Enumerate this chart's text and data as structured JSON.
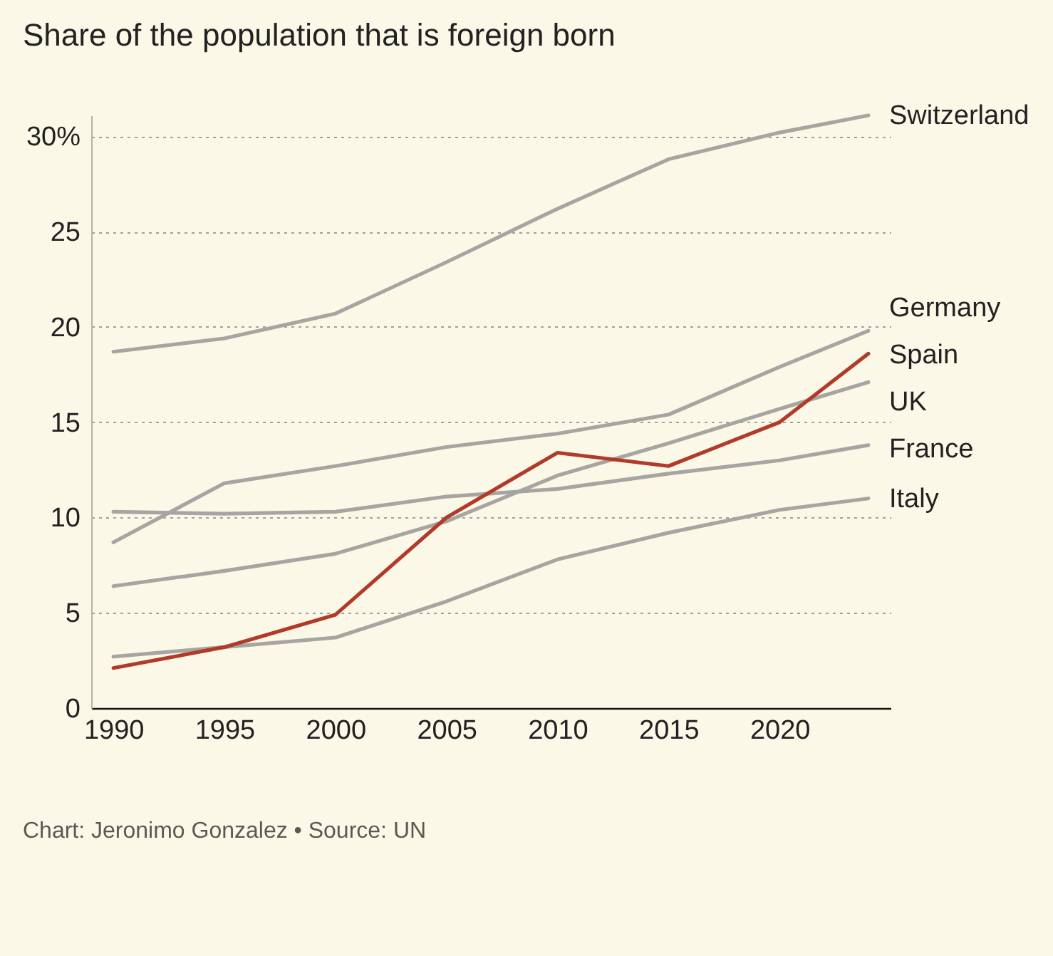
{
  "chart_data": {
    "type": "line",
    "title": "Share of the population that is foreign born",
    "x": [
      1990,
      1995,
      2000,
      2005,
      2010,
      2015,
      2020,
      2024
    ],
    "series": [
      {
        "name": "Switzerland",
        "color": "#a6a5a1",
        "values": [
          18.7,
          19.4,
          20.7,
          23.4,
          26.2,
          28.8,
          30.2,
          31.1
        ]
      },
      {
        "name": "Germany",
        "color": "#a6a5a1",
        "values": [
          8.7,
          11.8,
          12.7,
          13.7,
          14.4,
          15.4,
          17.9,
          19.8
        ]
      },
      {
        "name": "UK",
        "color": "#a6a5a1",
        "values": [
          6.4,
          7.2,
          8.1,
          9.8,
          12.2,
          13.9,
          15.7,
          17.1
        ]
      },
      {
        "name": "France",
        "color": "#a6a5a1",
        "values": [
          10.3,
          10.2,
          10.3,
          11.1,
          11.5,
          12.3,
          13.0,
          13.8
        ]
      },
      {
        "name": "Italy",
        "color": "#a6a5a1",
        "values": [
          2.7,
          3.2,
          3.7,
          5.6,
          7.8,
          9.2,
          10.4,
          11.0
        ]
      },
      {
        "name": "Spain",
        "color": "#b23a2a",
        "values": [
          2.1,
          3.2,
          4.9,
          10.0,
          13.4,
          12.7,
          15.0,
          18.6
        ]
      }
    ],
    "xlim": [
      1989,
      2025
    ],
    "xticks": [
      1990,
      1995,
      2000,
      2005,
      2010,
      2015,
      2020
    ],
    "ylim": [
      0,
      31.1
    ],
    "yticks": [
      0,
      5,
      10,
      15,
      20,
      25,
      {
        "value": 30,
        "label": "30%"
      }
    ],
    "grid": "y",
    "legend": false,
    "marker": "none",
    "line_style": "solid",
    "annotations": [
      "Chart: Jeronimo Gonzalez • Source: UN"
    ]
  }
}
